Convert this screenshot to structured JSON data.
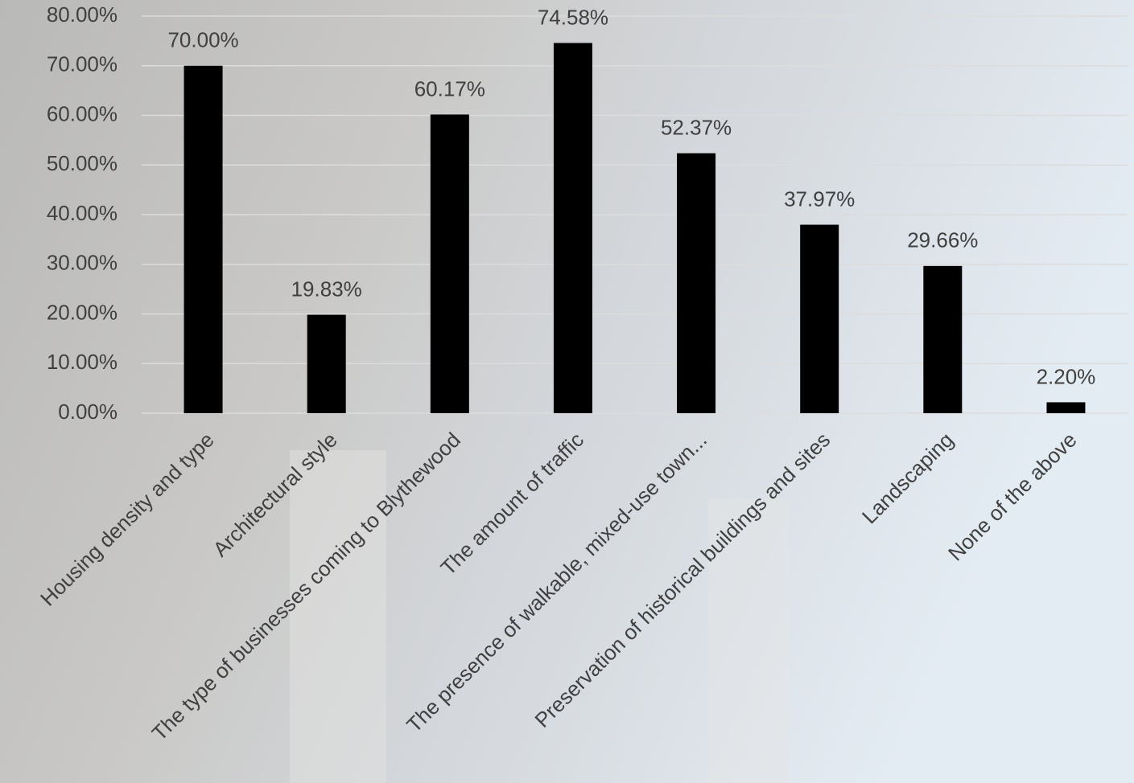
{
  "chart_data": {
    "type": "bar",
    "categories": [
      "Housing density and type",
      "Architectural style",
      "The type of businesses coming to Blythewood",
      "The amount of traffic",
      "The presence of walkable, mixed-use town...",
      "Preservation of historical buildings and sites",
      "Landscaping",
      "None of the above"
    ],
    "values": [
      70.0,
      19.83,
      60.17,
      74.58,
      52.37,
      37.97,
      29.66,
      2.2
    ],
    "value_labels": [
      "70.00%",
      "19.83%",
      "60.17%",
      "74.58%",
      "52.37%",
      "37.97%",
      "29.66%",
      "2.20%"
    ],
    "color": "#000000",
    "ylim": [
      0,
      80
    ],
    "yticks": [
      {
        "value": 0,
        "label": "0.00%"
      },
      {
        "value": 10,
        "label": "10.00%"
      },
      {
        "value": 20,
        "label": "20.00%"
      },
      {
        "value": 30,
        "label": "30.00%"
      },
      {
        "value": 40,
        "label": "40.00%"
      },
      {
        "value": 50,
        "label": "50.00%"
      },
      {
        "value": 60,
        "label": "60.00%"
      },
      {
        "value": 70,
        "label": "70.00%"
      },
      {
        "value": 80,
        "label": "80.00%"
      }
    ],
    "grid": true
  }
}
